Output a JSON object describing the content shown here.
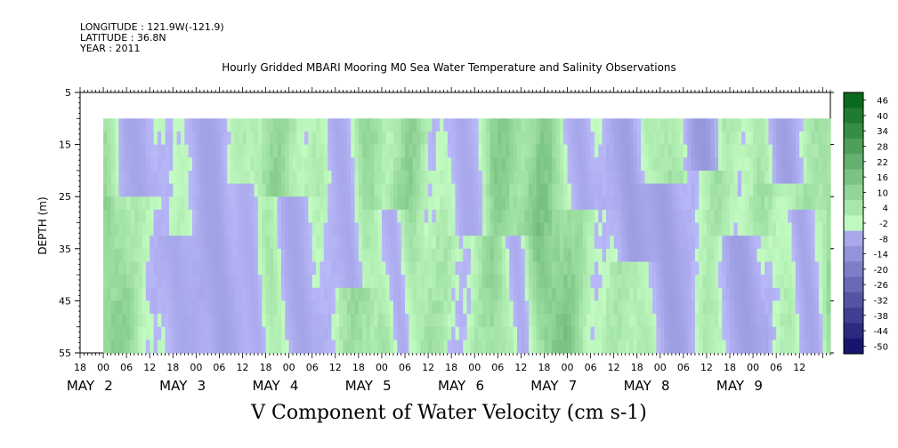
{
  "header": {
    "longitude": "LONGITUDE : 121.9W(-121.9)",
    "latitude": "LATITUDE : 36.8N",
    "year": "YEAR : 2011"
  },
  "chart_data": {
    "type": "heatmap",
    "title": "Hourly Gridded MBARI Mooring M0 Sea Water Temperature and Salinity Observations",
    "xlabel": "V Component of Water Velocity (cm s-1)",
    "ylabel": "DEPTH (m)",
    "ylim": [
      55,
      5
    ],
    "y_ticks": [
      5,
      15,
      25,
      35,
      45,
      55
    ],
    "x_start": "MAY 1 18:00",
    "x_end": "MAY 9 20:00",
    "hour_tick_labels": [
      "18",
      "00",
      "06",
      "12",
      "18",
      "00",
      "06",
      "12",
      "18",
      "00",
      "06",
      "12",
      "18",
      "00",
      "06",
      "12",
      "18",
      "00",
      "06",
      "12",
      "18",
      "00",
      "06",
      "12",
      "18",
      "00",
      "06",
      "12",
      "18",
      "00",
      "06",
      "12"
    ],
    "day_labels": [
      {
        "month": "MAY",
        "day": "2"
      },
      {
        "month": "MAY",
        "day": "3"
      },
      {
        "month": "MAY",
        "day": "4"
      },
      {
        "month": "MAY",
        "day": "5"
      },
      {
        "month": "MAY",
        "day": "6"
      },
      {
        "month": "MAY",
        "day": "7"
      },
      {
        "month": "MAY",
        "day": "8"
      },
      {
        "month": "MAY",
        "day": "9"
      }
    ],
    "data_depth_range": [
      10,
      55
    ],
    "data_start": "MAY 2 00:00",
    "colorbar_levels": [
      46,
      40,
      34,
      28,
      22,
      16,
      10,
      4,
      -2,
      -8,
      -14,
      -20,
      -26,
      -32,
      -38,
      -44,
      -50
    ],
    "colorbar_range": [
      -50,
      50
    ],
    "negative_bands": [
      {
        "center": "MAY 2 07:00",
        "width_h": 6,
        "shallow": 10,
        "deep": 22,
        "value": -6
      },
      {
        "center": "MAY 2 18:00",
        "width_h": 5,
        "shallow": 35,
        "deep": 55,
        "value": -5
      },
      {
        "center": "MAY 3 02:00",
        "width_h": 7,
        "shallow": 12,
        "deep": 55,
        "value": -7
      },
      {
        "center": "MAY 3 12:00",
        "width_h": 4,
        "shallow": 25,
        "deep": 55,
        "value": -4
      },
      {
        "center": "MAY 4 00:00",
        "width_h": 6,
        "shallow": 28,
        "deep": 55,
        "value": -6
      },
      {
        "center": "MAY 4 12:00",
        "width_h": 5,
        "shallow": 10,
        "deep": 40,
        "value": -5
      },
      {
        "center": "MAY 5 02:00",
        "width_h": 4,
        "shallow": 30,
        "deep": 55,
        "value": -4
      },
      {
        "center": "MAY 5 20:00",
        "width_h": 5,
        "shallow": 10,
        "deep": 30,
        "value": -5
      },
      {
        "center": "MAY 6 10:00",
        "width_h": 4,
        "shallow": 35,
        "deep": 55,
        "value": -4
      },
      {
        "center": "MAY 7 02:00",
        "width_h": 5,
        "shallow": 10,
        "deep": 25,
        "value": -5
      },
      {
        "center": "MAY 7 14:00",
        "width_h": 6,
        "shallow": 10,
        "deep": 35,
        "value": -8
      },
      {
        "center": "MAY 8 00:00",
        "width_h": 7,
        "shallow": 25,
        "deep": 55,
        "value": -8
      },
      {
        "center": "MAY 8 10:00",
        "width_h": 5,
        "shallow": 10,
        "deep": 18,
        "value": -10
      },
      {
        "center": "MAY 8 20:00",
        "width_h": 6,
        "shallow": 35,
        "deep": 55,
        "value": -8
      },
      {
        "center": "MAY 9 07:00",
        "width_h": 5,
        "shallow": 10,
        "deep": 20,
        "value": -8
      },
      {
        "center": "MAY 9 12:00",
        "width_h": 4,
        "shallow": 30,
        "deep": 55,
        "value": -6
      }
    ],
    "positive_bands": [
      {
        "center": "MAY 2 02:00",
        "width_h": 4,
        "value": 14
      },
      {
        "center": "MAY 3 20:00",
        "width_h": 6,
        "value": 16
      },
      {
        "center": "MAY 4 18:00",
        "width_h": 4,
        "value": 12
      },
      {
        "center": "MAY 5 06:00",
        "width_h": 5,
        "value": 14
      },
      {
        "center": "MAY 6 06:00",
        "width_h": 5,
        "value": 14
      },
      {
        "center": "MAY 6 20:00",
        "width_h": 8,
        "value": 18
      },
      {
        "center": "MAY 7 20:00",
        "width_h": 5,
        "value": 16
      },
      {
        "center": "MAY 8 15:00",
        "width_h": 4,
        "value": 14
      },
      {
        "center": "MAY 9 20:00",
        "width_h": 3,
        "value": 14
      }
    ]
  }
}
